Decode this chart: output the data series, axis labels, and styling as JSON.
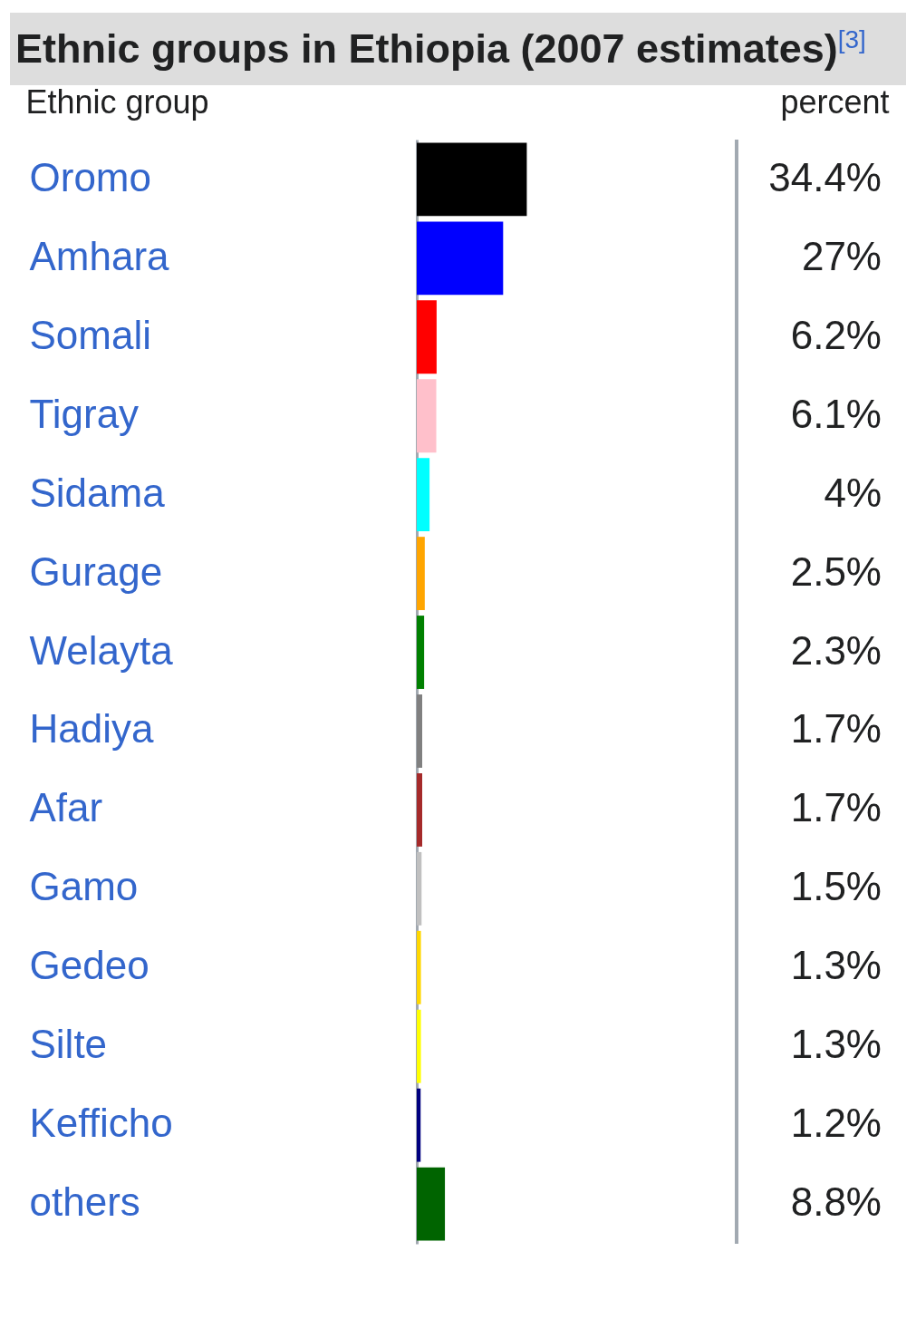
{
  "chart_data": {
    "type": "bar",
    "orientation": "horizontal",
    "title": "Ethnic groups in Ethiopia (2007 estimates)$^{[3]}$",
    "ylabel": "Ethnic group",
    "xlabel": "percent",
    "categories": [
      "Oromo",
      "Amhara",
      "Somali",
      "Tigray",
      "Sidama",
      "Gurage",
      "Welayta",
      "Hadiya",
      "Afar",
      "Gamo",
      "Gedeo",
      "Silte",
      "Kefficho",
      "others"
    ],
    "values": [
      34.4,
      27,
      6.2,
      6.1,
      4,
      2.5,
      2.3,
      1.7,
      1.7,
      1.5,
      1.3,
      1.3,
      1.2,
      8.8
    ],
    "value_labels": [
      "34.4%",
      "27%",
      "6.2%",
      "6.1%",
      "4%",
      "2.5%",
      "2.3%",
      "1.7%",
      "1.7%",
      "1.5%",
      "1.3%",
      "1.3%",
      "1.2%",
      "8.8%"
    ],
    "colors": [
      "#000000",
      "#0000ff",
      "#ff0000",
      "#ffc0cb",
      "#00ffff",
      "#ffa500",
      "#008000",
      "#808080",
      "#a52a2a",
      "#c0c0c0",
      "#ffd700",
      "#ffff00",
      "#000080",
      "#006400"
    ],
    "xlim": [
      0,
      100
    ],
    "grid": false,
    "legend": false
  }
}
